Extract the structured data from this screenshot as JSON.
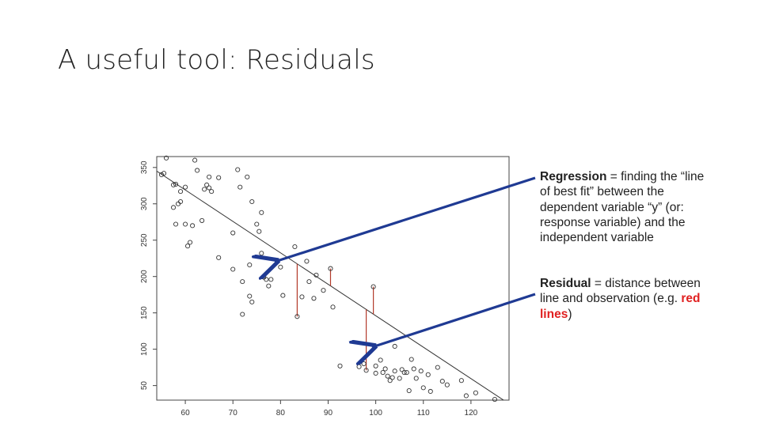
{
  "slide": {
    "title": "A useful tool: Residuals"
  },
  "annotations": {
    "regression": {
      "term": "Regression",
      "text": " = finding the “line of best fit” between the dependent variable “y” (or: response variable) and the independent variable"
    },
    "residual": {
      "term": "Residual",
      "text_before": " = distance between line and observation (e.g. ",
      "highlight": "red lines",
      "text_after": ")"
    }
  },
  "colors": {
    "arrow": "#1f3a93",
    "residual_line": "#b33a2a",
    "highlight": "#e02020",
    "points": "#333333"
  },
  "chart_data": {
    "type": "scatter",
    "title": "",
    "xlabel": "",
    "ylabel": "",
    "xlim": [
      54,
      128
    ],
    "ylim": [
      30,
      365
    ],
    "xticks": [
      60,
      70,
      80,
      90,
      100,
      110,
      120
    ],
    "yticks": [
      50,
      100,
      150,
      200,
      250,
      300,
      350
    ],
    "grid": false,
    "regression_line": {
      "x1": 54,
      "y1": 345,
      "x2": 128,
      "y2": 25
    },
    "points": [
      [
        56,
        363
      ],
      [
        55.5,
        342
      ],
      [
        55,
        340
      ],
      [
        57.5,
        326
      ],
      [
        59,
        317
      ],
      [
        60,
        323
      ],
      [
        58,
        327
      ],
      [
        57.5,
        295
      ],
      [
        59,
        303
      ],
      [
        58.5,
        300
      ],
      [
        62,
        360
      ],
      [
        62.5,
        346
      ],
      [
        64.5,
        326
      ],
      [
        65,
        322
      ],
      [
        64,
        320
      ],
      [
        65.5,
        317
      ],
      [
        65,
        337
      ],
      [
        67,
        336
      ],
      [
        71,
        347
      ],
      [
        73,
        337
      ],
      [
        71.5,
        323
      ],
      [
        74,
        303
      ],
      [
        76,
        288
      ],
      [
        75,
        272
      ],
      [
        75.5,
        262
      ],
      [
        63.5,
        277
      ],
      [
        60,
        272
      ],
      [
        61.5,
        270
      ],
      [
        58,
        272
      ],
      [
        61,
        247
      ],
      [
        60.5,
        242
      ],
      [
        70,
        260
      ],
      [
        67,
        226
      ],
      [
        70,
        210
      ],
      [
        72,
        193
      ],
      [
        73.5,
        216
      ],
      [
        76,
        232
      ],
      [
        78,
        196
      ],
      [
        76.5,
        199
      ],
      [
        77,
        196
      ],
      [
        77.5,
        187
      ],
      [
        73.5,
        173
      ],
      [
        74,
        165
      ],
      [
        72,
        148
      ],
      [
        80.5,
        174
      ],
      [
        80,
        213
      ],
      [
        83,
        241
      ],
      [
        85.5,
        221
      ],
      [
        86,
        193
      ],
      [
        84.5,
        172
      ],
      [
        87,
        170
      ],
      [
        87.5,
        202
      ],
      [
        89,
        181
      ],
      [
        91,
        158
      ],
      [
        90.5,
        211
      ],
      [
        83.5,
        145
      ],
      [
        92.5,
        77
      ],
      [
        96.5,
        76
      ],
      [
        98,
        71
      ],
      [
        99.5,
        186
      ],
      [
        100,
        77
      ],
      [
        101,
        85
      ],
      [
        101.5,
        68
      ],
      [
        102,
        73
      ],
      [
        102.5,
        63
      ],
      [
        103,
        57
      ],
      [
        104,
        70
      ],
      [
        105,
        60
      ],
      [
        105.5,
        72
      ],
      [
        106.5,
        68
      ],
      [
        107,
        43
      ],
      [
        107.5,
        86
      ],
      [
        108,
        73
      ],
      [
        108.5,
        60
      ],
      [
        109.5,
        70
      ],
      [
        110,
        47
      ],
      [
        111,
        65
      ],
      [
        111.5,
        42
      ],
      [
        113,
        75
      ],
      [
        114,
        56
      ],
      [
        115,
        51
      ],
      [
        118,
        57
      ],
      [
        119,
        36
      ],
      [
        121,
        40
      ],
      [
        125,
        31
      ],
      [
        104,
        104
      ],
      [
        100,
        67
      ],
      [
        106,
        68
      ],
      [
        103.5,
        61
      ],
      [
        97.5,
        80
      ]
    ],
    "residuals": [
      {
        "x": 83.5,
        "y": 145
      },
      {
        "x": 90.5,
        "y": 211
      },
      {
        "x": 99.5,
        "y": 186
      },
      {
        "x": 98,
        "y": 71
      }
    ]
  }
}
